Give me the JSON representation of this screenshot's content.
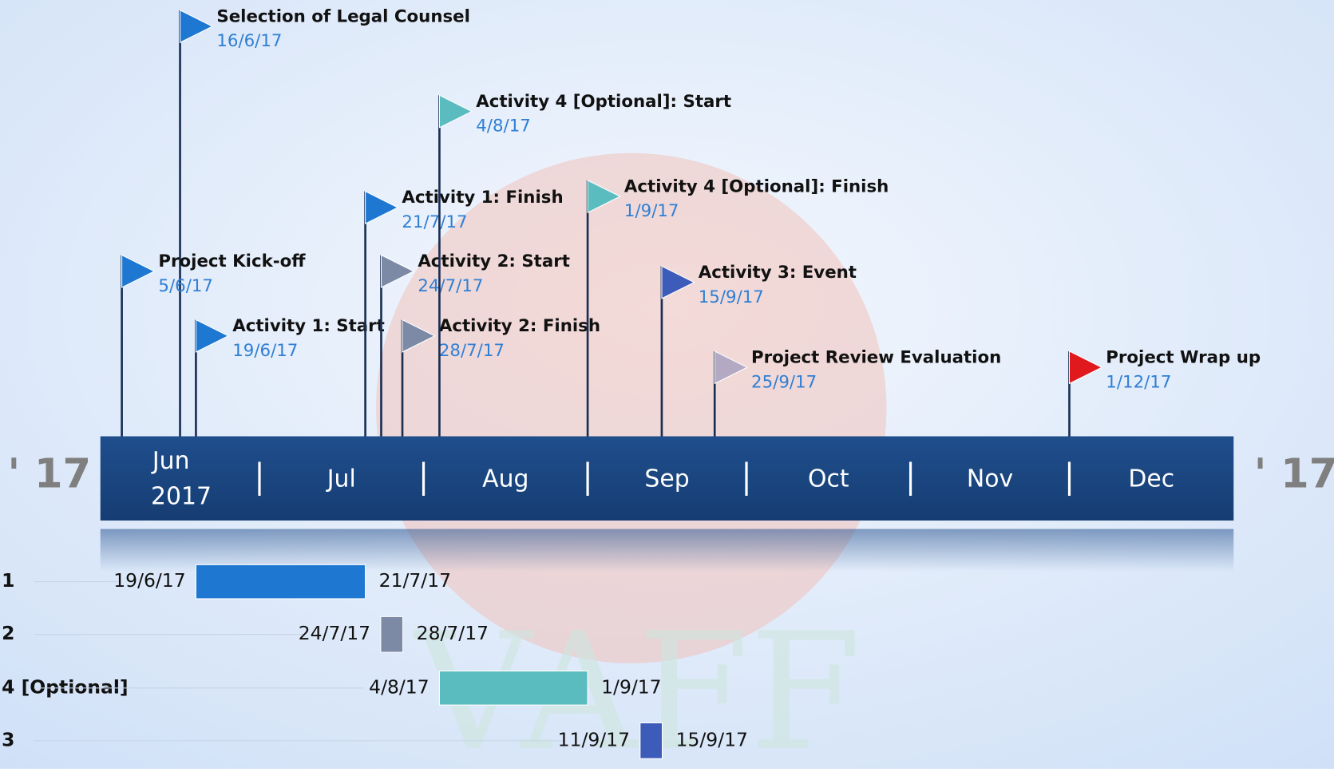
{
  "timeline": {
    "year_left": "' 17",
    "year_right": "' 17",
    "first_year": "2017",
    "months": [
      "Jun",
      "Jul",
      "Aug",
      "Sep",
      "Oct",
      "Nov",
      "Dec"
    ],
    "watermark": "VAFF",
    "milestones": [
      {
        "label": "Selection of Legal Counsel",
        "date": "16/6/17",
        "color": "#1e78d2"
      },
      {
        "label": "Project Kick-off",
        "date": "5/6/17",
        "color": "#1e78d2"
      },
      {
        "label": "Activity 1: Start",
        "date": "19/6/17",
        "color": "#1e78d2"
      },
      {
        "label": "Activity 1: Finish",
        "date": "21/7/17",
        "color": "#1e78d2"
      },
      {
        "label": "Activity 2: Start",
        "date": "24/7/17",
        "color": "#7d8aa6"
      },
      {
        "label": "Activity 2: Finish",
        "date": "28/7/17",
        "color": "#7d8aa6"
      },
      {
        "label": "Activity 4 [Optional]: Start",
        "date": "4/8/17",
        "color": "#5bbcbf"
      },
      {
        "label": "Activity 4 [Optional]: Finish",
        "date": "1/9/17",
        "color": "#5bbcbf"
      },
      {
        "label": "Activity 3: Event",
        "date": "15/9/17",
        "color": "#3d5bb8"
      },
      {
        "label": "Project Review Evaluation",
        "date": "25/9/17",
        "color": "#b3a9c2"
      },
      {
        "label": "Project Wrap up",
        "date": "1/12/17",
        "color": "#e0191d"
      }
    ],
    "tasks": [
      {
        "label": "1",
        "start": "19/6/17",
        "end": "21/7/17",
        "color": "#1e78d2"
      },
      {
        "label": "2",
        "start": "24/7/17",
        "end": "28/7/17",
        "color": "#7d8aa6"
      },
      {
        "label": "4 [Optional]",
        "start": "4/8/17",
        "end": "1/9/17",
        "color": "#5bbcbf"
      },
      {
        "label": "3",
        "start": "11/9/17",
        "end": "15/9/17",
        "color": "#3d5bb8"
      }
    ]
  }
}
